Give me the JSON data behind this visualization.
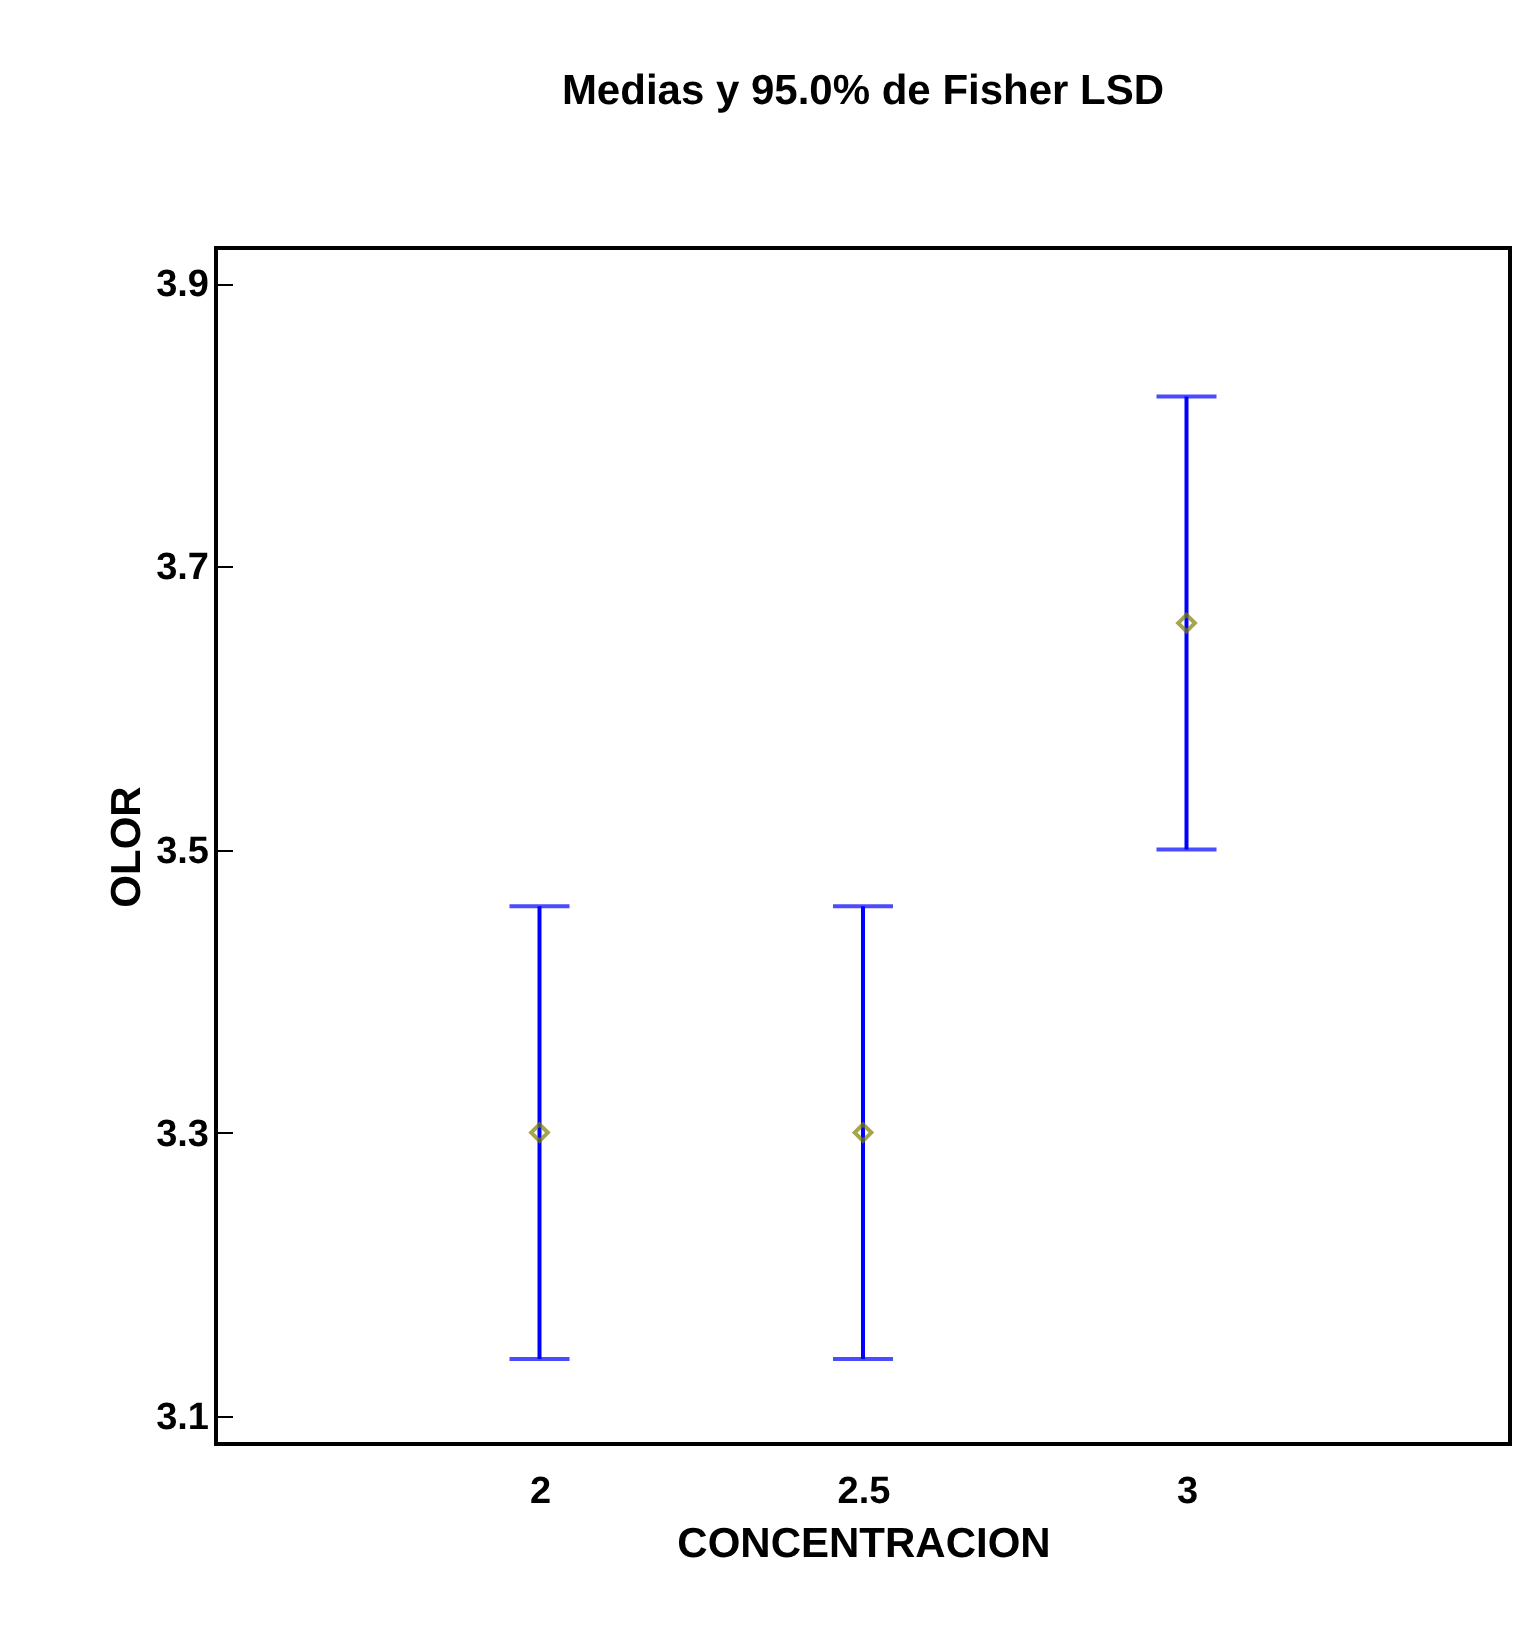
{
  "chart_data": {
    "type": "scatter",
    "title": "Medias y 95.0% de Fisher LSD",
    "xlabel": "CONCENTRACION",
    "ylabel": "OLOR",
    "categories": [
      "2",
      "2.5",
      "3"
    ],
    "series": [
      {
        "color": "#808000",
        "values": [
          3.3,
          3.3,
          3.66
        ],
        "errors": [
          0.16,
          0.16,
          0.16
        ]
      }
    ],
    "ylim": [
      3.08,
      3.925
    ],
    "yticks": [
      3.1,
      3.3,
      3.5,
      3.7,
      3.9
    ],
    "grid": false,
    "marker": "diamond"
  }
}
